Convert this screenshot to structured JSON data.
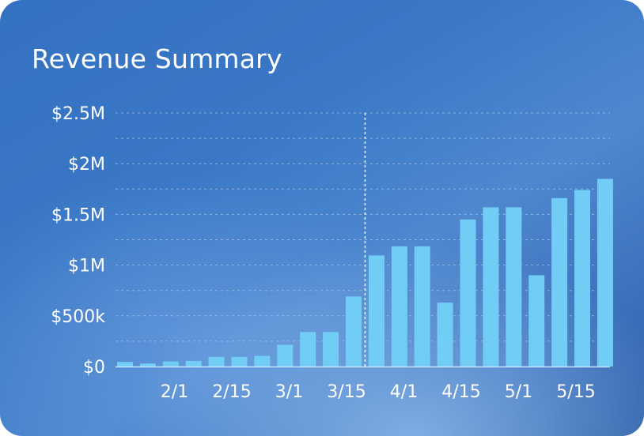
{
  "card": {
    "title": "Revenue Summary"
  },
  "chart_data": {
    "type": "bar",
    "title": "Revenue Summary",
    "xlabel": "",
    "ylabel": "",
    "ylim": [
      0,
      2500000
    ],
    "yticks": [
      {
        "value": 0,
        "label": "$0"
      },
      {
        "value": 500000,
        "label": "$500k"
      },
      {
        "value": 1000000,
        "label": "$1M"
      },
      {
        "value": 1500000,
        "label": "$1.5M"
      },
      {
        "value": 2000000,
        "label": "$2M"
      },
      {
        "value": 2500000,
        "label": "$2.5M"
      }
    ],
    "xticks": [
      "2/1",
      "2/15",
      "3/1",
      "3/15",
      "4/1",
      "4/15",
      "5/1",
      "5/15"
    ],
    "values": [
      45000,
      30000,
      50000,
      55000,
      95000,
      95000,
      105000,
      215000,
      340000,
      340000,
      690000,
      1095000,
      1185000,
      1185000,
      630000,
      1450000,
      1570000,
      1570000,
      900000,
      1660000,
      1740000,
      1850000
    ],
    "grid": true,
    "reference_line_after_bar": 10,
    "colors": {
      "bar": "#72cdf6",
      "grid": "#a9c8ec",
      "reference_line": "#ffffff",
      "axis": "#bfe3fa"
    }
  }
}
